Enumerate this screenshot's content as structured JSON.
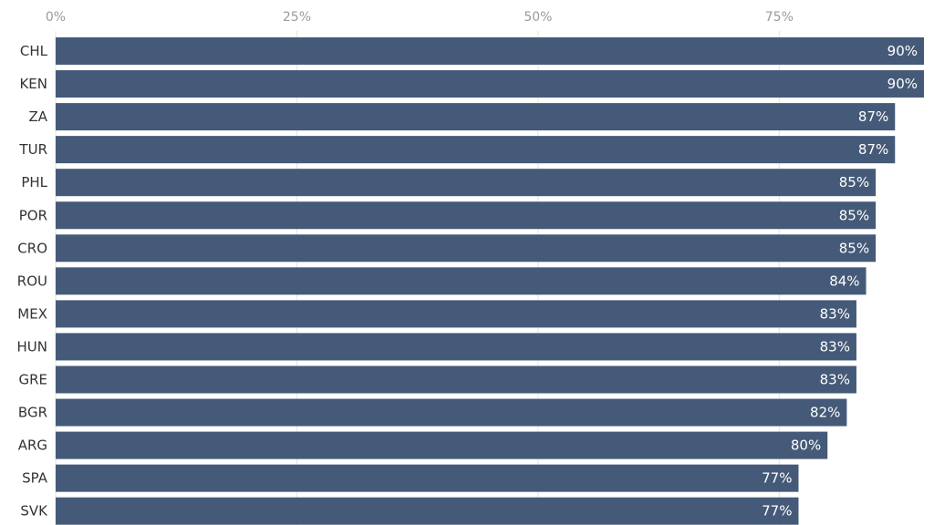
{
  "chart_data": {
    "type": "bar",
    "orientation": "horizontal",
    "categories": [
      "CHL",
      "KEN",
      "ZA",
      "TUR",
      "PHL",
      "POR",
      "CRO",
      "ROU",
      "MEX",
      "HUN",
      "GRE",
      "BGR",
      "ARG",
      "SPA",
      "SVK"
    ],
    "values": [
      90,
      90,
      87,
      87,
      85,
      85,
      85,
      84,
      83,
      83,
      83,
      82,
      80,
      77,
      77
    ],
    "value_labels": [
      "90%",
      "90%",
      "87%",
      "87%",
      "85%",
      "85%",
      "85%",
      "84%",
      "83%",
      "83%",
      "83%",
      "82%",
      "80%",
      "77%",
      "77%"
    ],
    "x_ticks": [
      0,
      25,
      50,
      75
    ],
    "x_tick_labels": [
      "0%",
      "25%",
      "50%",
      "75%"
    ],
    "xlim": [
      0,
      90
    ],
    "axis_position": "top",
    "grid": true,
    "title": "",
    "xlabel": "",
    "ylabel": "",
    "colors": {
      "bar": "#455a78",
      "grid": "#e4e4e4",
      "tick_text": "#9a9a9a",
      "category_text": "#333333",
      "value_text": "#ffffff"
    }
  }
}
